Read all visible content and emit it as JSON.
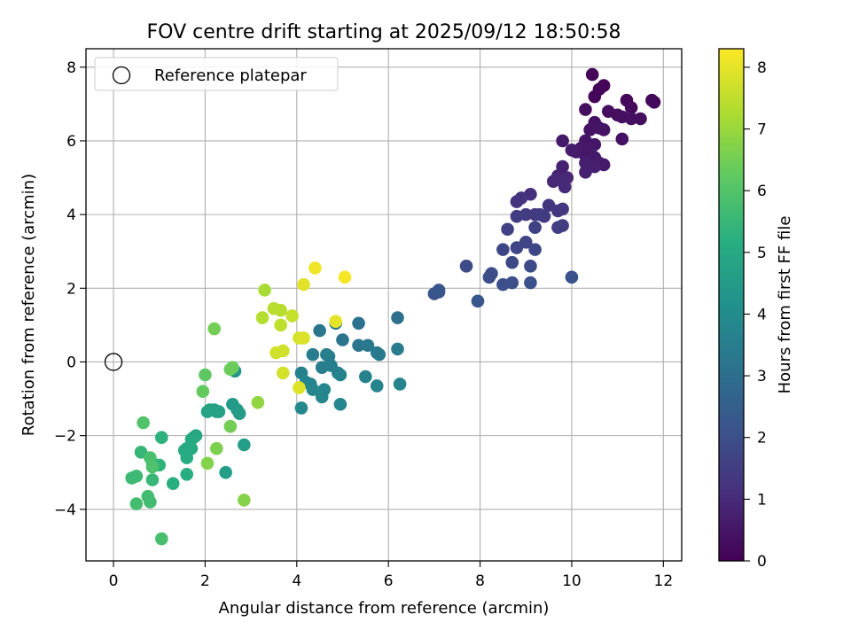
{
  "chart_data": {
    "type": "scatter",
    "title": "FOV centre drift starting at 2025/09/12 18:50:58",
    "xlabel": "Angular distance from reference (arcmin)",
    "ylabel": "Rotation from reference (arcmin)",
    "xlim": [
      -0.6,
      12.4
    ],
    "ylim": [
      -5.4,
      8.5
    ],
    "xticks": [
      "0",
      "2",
      "4",
      "6",
      "8",
      "10",
      "12"
    ],
    "yticks": [
      "−4",
      "−2",
      "0",
      "2",
      "4",
      "6",
      "8"
    ],
    "grid": true,
    "legend": {
      "placement": "upper-left",
      "entries": [
        "Reference platepar"
      ]
    },
    "reference_point": {
      "x": 0,
      "y": 0,
      "marker": "open-circle"
    },
    "colorbar": {
      "label": "Hours from first FF file",
      "range": [
        0,
        8.3
      ],
      "ticks": [
        "0",
        "1",
        "2",
        "3",
        "4",
        "5",
        "6",
        "7",
        "8"
      ],
      "colormap": "viridis"
    },
    "points_xyc": [
      [
        10.45,
        7.8,
        0.1
      ],
      [
        10.7,
        7.5,
        0.1
      ],
      [
        10.6,
        7.4,
        0.12
      ],
      [
        10.5,
        7.2,
        0.15
      ],
      [
        11.2,
        7.1,
        0.2
      ],
      [
        11.8,
        7.05,
        0.2
      ],
      [
        11.75,
        7.1,
        0.18
      ],
      [
        11.3,
        6.9,
        0.25
      ],
      [
        10.3,
        6.85,
        0.3
      ],
      [
        10.8,
        6.8,
        0.3
      ],
      [
        11.0,
        6.7,
        0.3
      ],
      [
        11.1,
        6.65,
        0.35
      ],
      [
        11.3,
        6.6,
        0.35
      ],
      [
        11.5,
        6.6,
        0.3
      ],
      [
        10.5,
        6.5,
        0.4
      ],
      [
        10.4,
        6.3,
        0.4
      ],
      [
        10.6,
        6.35,
        0.45
      ],
      [
        10.7,
        6.3,
        0.45
      ],
      [
        11.1,
        6.05,
        0.4
      ],
      [
        10.3,
        6.0,
        0.5
      ],
      [
        9.8,
        6.0,
        0.6
      ],
      [
        10.5,
        5.9,
        0.5
      ],
      [
        10.2,
        5.8,
        0.55
      ],
      [
        10.4,
        5.75,
        0.6
      ],
      [
        10.1,
        5.7,
        0.6
      ],
      [
        10.0,
        5.75,
        0.65
      ],
      [
        10.3,
        5.6,
        0.55
      ],
      [
        10.5,
        5.55,
        0.6
      ],
      [
        10.6,
        5.4,
        0.65
      ],
      [
        10.7,
        5.35,
        0.6
      ],
      [
        10.3,
        5.4,
        0.7
      ],
      [
        10.5,
        5.3,
        0.7
      ],
      [
        10.3,
        5.15,
        0.75
      ],
      [
        9.8,
        5.3,
        0.8
      ],
      [
        9.7,
        5.05,
        0.8
      ],
      [
        9.9,
        5.0,
        0.9
      ],
      [
        9.6,
        4.9,
        0.9
      ],
      [
        9.7,
        4.95,
        0.95
      ],
      [
        9.85,
        4.75,
        1.0
      ],
      [
        9.1,
        4.55,
        1.1
      ],
      [
        8.8,
        4.35,
        1.2
      ],
      [
        8.9,
        4.45,
        1.2
      ],
      [
        9.5,
        4.25,
        1.3
      ],
      [
        9.8,
        4.15,
        1.35
      ],
      [
        9.7,
        4.1,
        1.3
      ],
      [
        9.4,
        3.95,
        1.4
      ],
      [
        9.2,
        4.0,
        1.4
      ],
      [
        9.0,
        4.0,
        1.45
      ],
      [
        8.8,
        3.95,
        1.45
      ],
      [
        9.3,
        4.0,
        1.5
      ],
      [
        9.8,
        3.7,
        1.5
      ],
      [
        9.7,
        3.65,
        1.55
      ],
      [
        8.6,
        3.6,
        1.6
      ],
      [
        9.2,
        3.65,
        1.6
      ],
      [
        9.0,
        3.25,
        1.7
      ],
      [
        8.8,
        3.1,
        1.7
      ],
      [
        8.5,
        3.05,
        1.75
      ],
      [
        9.2,
        3.05,
        1.75
      ],
      [
        8.7,
        2.7,
        1.8
      ],
      [
        9.1,
        2.6,
        1.85
      ],
      [
        7.7,
        2.6,
        1.9
      ],
      [
        8.2,
        2.3,
        1.95
      ],
      [
        8.25,
        2.4,
        1.95
      ],
      [
        8.5,
        2.1,
        2.0
      ],
      [
        8.7,
        2.15,
        2.0
      ],
      [
        9.1,
        2.15,
        2.05
      ],
      [
        10.0,
        2.3,
        2.05
      ],
      [
        7.1,
        1.9,
        2.15
      ],
      [
        7.0,
        1.85,
        2.15
      ],
      [
        7.1,
        1.95,
        2.2
      ],
      [
        7.95,
        1.65,
        2.25
      ],
      [
        6.2,
        1.2,
        3.0
      ],
      [
        5.35,
        1.05,
        3.1
      ],
      [
        5.0,
        0.6,
        3.15
      ],
      [
        4.85,
        1.05,
        3.2
      ],
      [
        4.5,
        0.85,
        3.25
      ],
      [
        5.35,
        0.45,
        3.2
      ],
      [
        5.55,
        0.45,
        3.3
      ],
      [
        5.75,
        0.25,
        3.35
      ],
      [
        5.8,
        0.2,
        3.35
      ],
      [
        6.2,
        0.35,
        3.4
      ],
      [
        4.35,
        0.2,
        3.45
      ],
      [
        4.7,
        0.15,
        3.5
      ],
      [
        4.65,
        0.2,
        3.5
      ],
      [
        4.55,
        -0.15,
        3.55
      ],
      [
        4.75,
        -0.1,
        3.55
      ],
      [
        4.1,
        -0.3,
        3.6
      ],
      [
        4.9,
        -0.3,
        3.6
      ],
      [
        4.95,
        -0.35,
        3.65
      ],
      [
        5.5,
        -0.4,
        3.6
      ],
      [
        5.75,
        -0.65,
        3.7
      ],
      [
        6.25,
        -0.6,
        3.7
      ],
      [
        4.2,
        -0.55,
        3.75
      ],
      [
        4.3,
        -0.6,
        3.75
      ],
      [
        4.35,
        -0.75,
        3.8
      ],
      [
        4.6,
        -0.75,
        3.8
      ],
      [
        4.55,
        -0.95,
        3.8
      ],
      [
        4.95,
        -1.15,
        3.75
      ],
      [
        4.1,
        -1.25,
        3.85
      ],
      [
        2.65,
        -0.25,
        4.35
      ],
      [
        2.6,
        -1.15,
        4.5
      ],
      [
        2.7,
        -1.3,
        4.5
      ],
      [
        2.75,
        -1.4,
        4.55
      ],
      [
        2.85,
        -2.25,
        4.6
      ],
      [
        2.45,
        -3.0,
        4.6
      ],
      [
        2.3,
        -1.35,
        4.7
      ],
      [
        2.25,
        -1.35,
        4.7
      ],
      [
        2.1,
        -1.3,
        4.75
      ],
      [
        2.2,
        -1.3,
        4.75
      ],
      [
        2.05,
        -1.35,
        4.8
      ],
      [
        1.8,
        -2.0,
        4.9
      ],
      [
        1.75,
        -2.05,
        4.9
      ],
      [
        1.7,
        -2.1,
        5.0
      ],
      [
        1.6,
        -2.35,
        5.0
      ],
      [
        1.55,
        -2.4,
        5.05
      ],
      [
        1.7,
        -2.35,
        5.05
      ],
      [
        1.6,
        -2.6,
        5.1
      ],
      [
        1.6,
        -3.05,
        5.2
      ],
      [
        1.3,
        -3.3,
        5.2
      ],
      [
        1.05,
        -2.05,
        5.3
      ],
      [
        1.0,
        -2.8,
        5.35
      ],
      [
        0.85,
        -2.75,
        5.4
      ],
      [
        0.6,
        -2.45,
        5.5
      ],
      [
        0.85,
        -3.2,
        5.5
      ],
      [
        0.4,
        -3.15,
        5.6
      ],
      [
        0.5,
        -3.1,
        5.6
      ],
      [
        0.75,
        -3.65,
        5.7
      ],
      [
        0.8,
        -3.8,
        5.7
      ],
      [
        0.5,
        -3.85,
        5.75
      ],
      [
        1.05,
        -4.8,
        5.8
      ],
      [
        0.8,
        -2.6,
        5.85
      ],
      [
        0.85,
        -2.85,
        5.9
      ],
      [
        0.65,
        -1.65,
        6.0
      ],
      [
        2.0,
        -0.35,
        6.2
      ],
      [
        1.95,
        -0.8,
        6.3
      ],
      [
        2.55,
        -0.2,
        6.4
      ],
      [
        2.6,
        -0.15,
        6.4
      ],
      [
        2.2,
        0.9,
        6.5
      ],
      [
        2.55,
        -1.75,
        6.5
      ],
      [
        2.25,
        -2.35,
        6.6
      ],
      [
        2.05,
        -2.75,
        6.7
      ],
      [
        2.85,
        -3.75,
        6.75
      ],
      [
        3.15,
        -1.1,
        6.9
      ],
      [
        3.3,
        1.95,
        7.2
      ],
      [
        3.25,
        1.2,
        7.35
      ],
      [
        3.5,
        1.45,
        7.4
      ],
      [
        3.65,
        1.4,
        7.4
      ],
      [
        3.65,
        1.0,
        7.5
      ],
      [
        3.9,
        1.25,
        7.6
      ],
      [
        3.55,
        0.25,
        7.7
      ],
      [
        3.7,
        0.3,
        7.7
      ],
      [
        3.7,
        -0.3,
        7.75
      ],
      [
        4.05,
        0.65,
        7.8
      ],
      [
        4.15,
        0.65,
        7.85
      ],
      [
        4.05,
        -0.7,
        7.9
      ],
      [
        4.15,
        2.1,
        7.95
      ],
      [
        4.85,
        1.1,
        8.0
      ],
      [
        4.4,
        2.55,
        8.1
      ],
      [
        5.05,
        2.3,
        8.2
      ]
    ]
  }
}
